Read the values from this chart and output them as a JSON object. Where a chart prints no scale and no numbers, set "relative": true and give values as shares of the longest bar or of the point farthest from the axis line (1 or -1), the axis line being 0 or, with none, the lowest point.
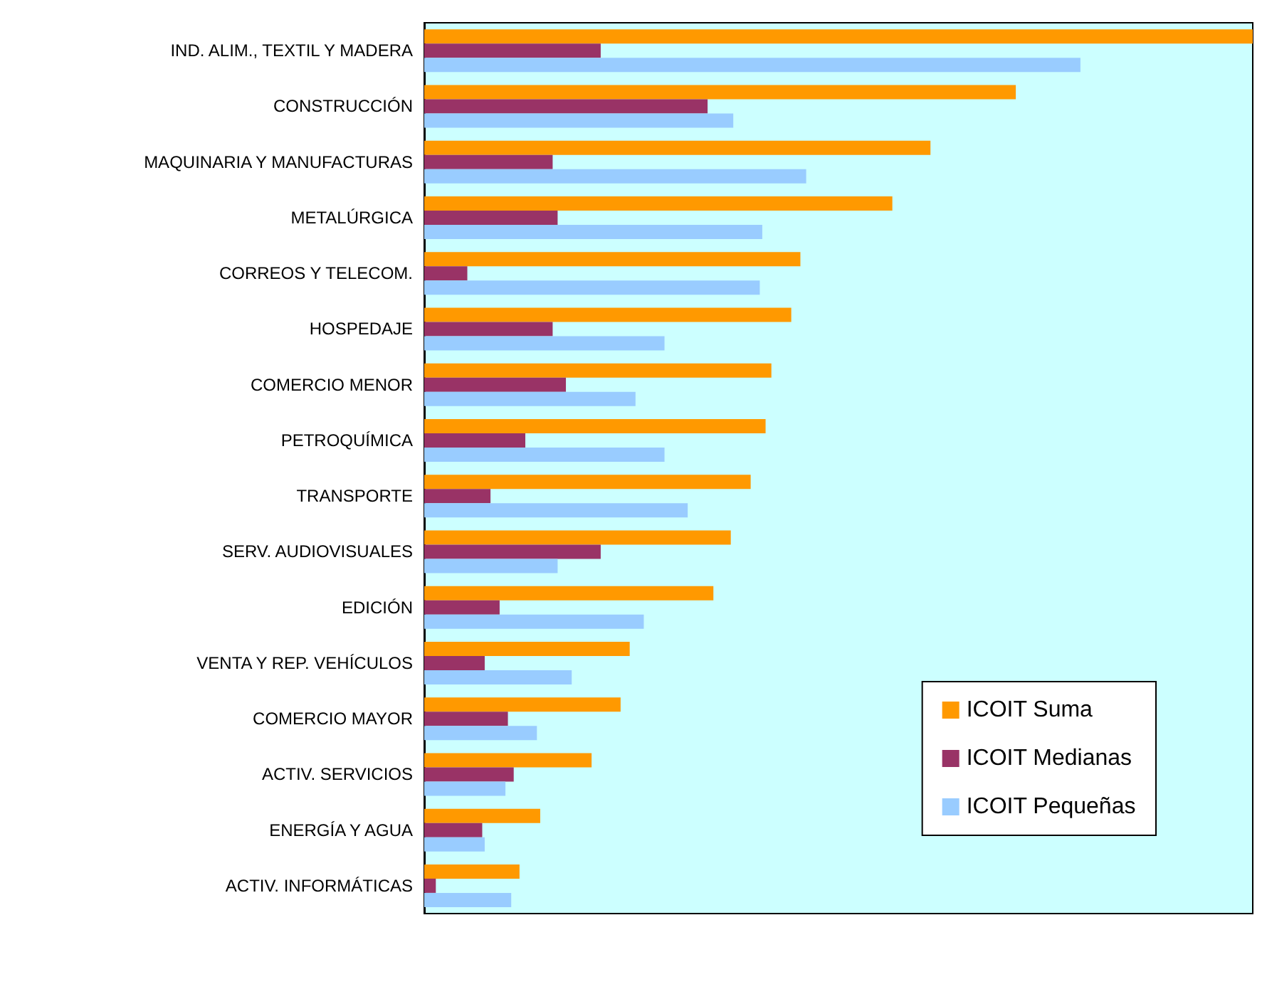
{
  "chart_data": {
    "type": "bar",
    "orientation": "horizontal",
    "relative": true,
    "legend": "bottom right",
    "categories": [
      "IND. ALIM., TEXTIL Y MADERA",
      "CONSTRUCCIÓN",
      "MAQUINARIA Y MANUFACTURAS",
      "METALÚRGICA",
      "CORREOS Y TELECOM.",
      "HOSPEDAJE",
      "COMERCIO MENOR",
      "PETROQUÍMICA",
      "TRANSPORTE",
      "SERV. AUDIOVISUALES",
      "EDICIÓN",
      "VENTA Y REP. VEHÍCULOS",
      "COMERCIO MAYOR",
      "ACTIV. SERVICIOS",
      "ENERGÍA Y AGUA",
      "ACTIV. INFORMÁTICAS"
    ],
    "series": [
      {
        "name": "ICOIT Suma",
        "color": "#ff9900",
        "values": [
          1.0,
          0.714,
          0.611,
          0.565,
          0.454,
          0.443,
          0.419,
          0.412,
          0.394,
          0.37,
          0.349,
          0.248,
          0.237,
          0.202,
          0.14,
          0.115
        ]
      },
      {
        "name": "ICOIT Medianas",
        "color": "#993366",
        "values": [
          0.213,
          0.342,
          0.155,
          0.161,
          0.052,
          0.155,
          0.171,
          0.122,
          0.08,
          0.213,
          0.091,
          0.073,
          0.101,
          0.108,
          0.07,
          0.014
        ]
      },
      {
        "name": "ICOIT Pequeñas",
        "color": "#99ccff",
        "values": [
          0.792,
          0.373,
          0.461,
          0.408,
          0.405,
          0.29,
          0.255,
          0.29,
          0.318,
          0.161,
          0.265,
          0.178,
          0.136,
          0.098,
          0.073,
          0.105
        ]
      }
    ]
  }
}
